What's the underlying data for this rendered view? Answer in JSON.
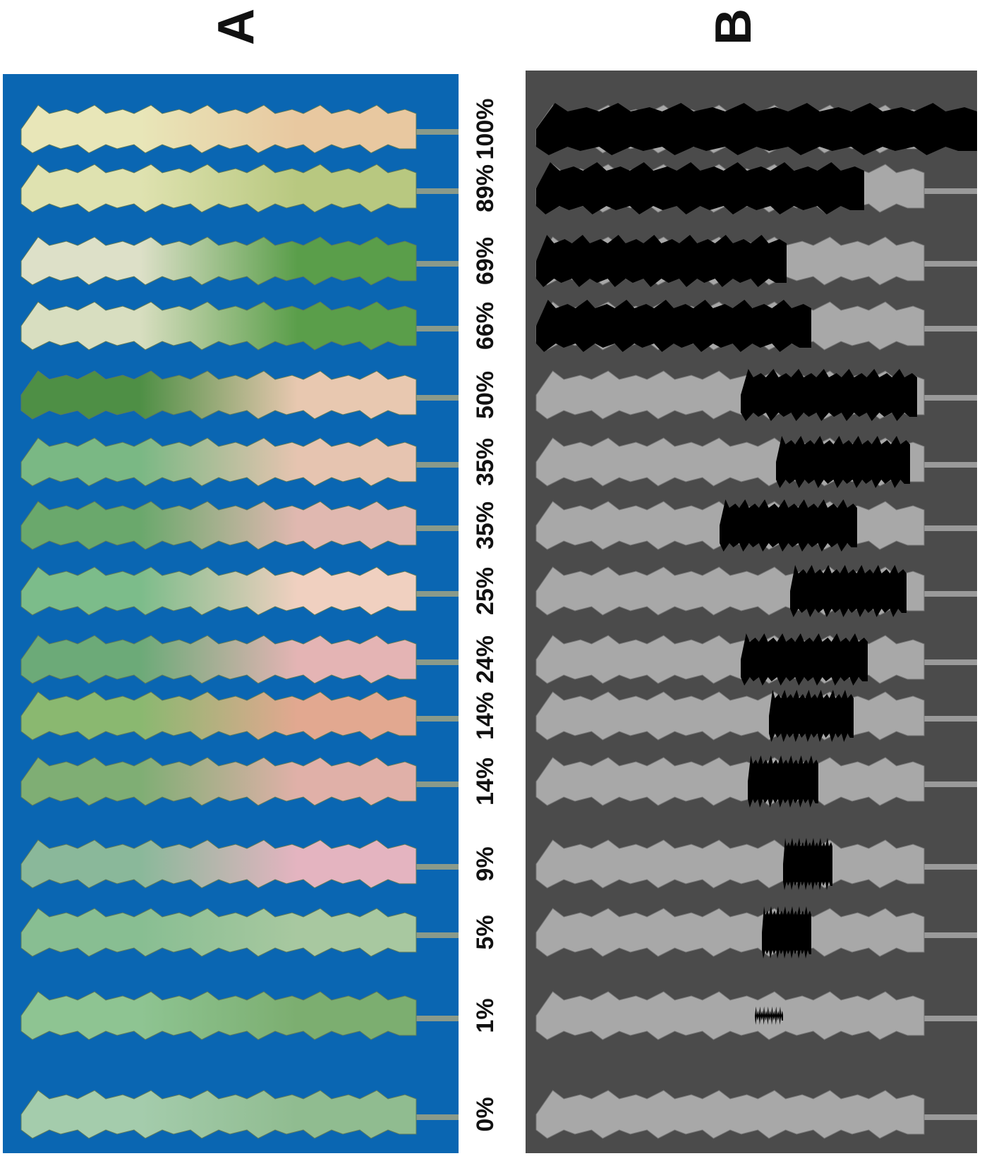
{
  "panels": [
    {
      "label": "A"
    },
    {
      "label": "B"
    }
  ],
  "severity_labels": [
    "100%",
    "89%",
    "69%",
    "66%",
    "50%",
    "35%",
    "35%",
    "25%",
    "24%",
    "14%",
    "14%",
    "9%",
    "5%",
    "1%",
    "0%"
  ]
}
